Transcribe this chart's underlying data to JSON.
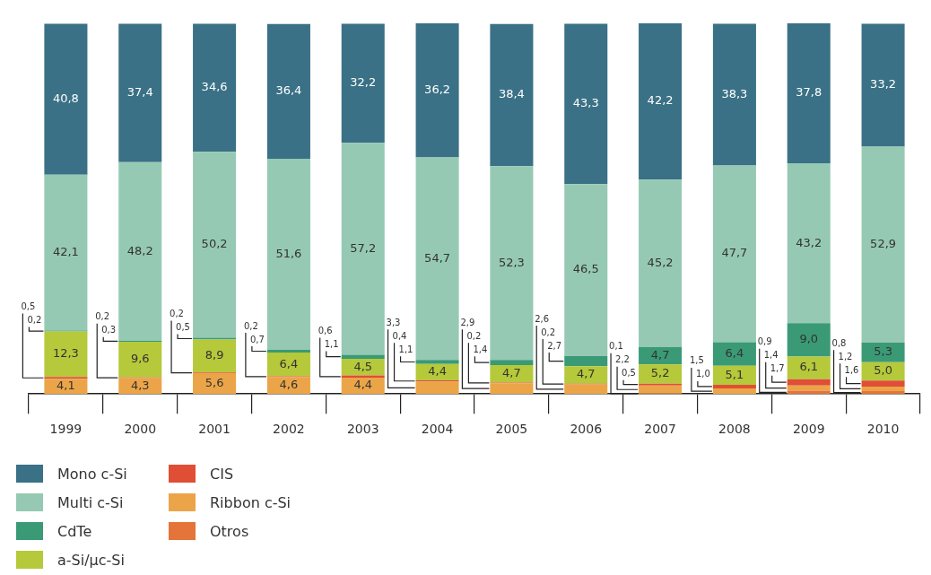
{
  "chart_data": {
    "type": "bar",
    "stacked": true,
    "tick_labels": "x",
    "legend": "bottom",
    "grid": false,
    "categories": [
      "1999",
      "2000",
      "2001",
      "2002",
      "2003",
      "2004",
      "2005",
      "2006",
      "2007",
      "2008",
      "2009",
      "2010"
    ],
    "series": [
      {
        "name": "Otros",
        "color": "#e47439",
        "values": [
          null,
          null,
          null,
          null,
          null,
          null,
          null,
          null,
          0.1,
          null,
          0.9,
          0.8
        ],
        "value_labels": [
          null,
          null,
          null,
          null,
          null,
          null,
          null,
          null,
          "0,1",
          null,
          "0,9",
          "0,8"
        ]
      },
      {
        "name": "Ribbon c-Si",
        "color": "#eba548",
        "values": [
          4.1,
          4.3,
          5.6,
          4.6,
          4.4,
          3.3,
          2.9,
          2.6,
          2.2,
          1.5,
          1.4,
          1.2
        ],
        "value_labels": [
          "4,1",
          "4,3",
          "5,6",
          "4,6",
          "4,4",
          "3,3",
          "2,9",
          "2,6",
          "2,2",
          "1,5",
          "1,4",
          "1,2"
        ]
      },
      {
        "name": "CIS",
        "color": "#e04e35",
        "values": [
          0.5,
          0.2,
          0.2,
          0.2,
          0.6,
          0.4,
          0.2,
          0.2,
          0.5,
          1.0,
          1.7,
          1.6
        ],
        "value_labels": [
          "0,5",
          "0,2",
          "0,2",
          "0,2",
          "0,6",
          "0,4",
          "0,2",
          "0,2",
          "0,5",
          "1,0",
          "1,7",
          "1,6"
        ]
      },
      {
        "name": "a-Si/µc-Si",
        "color": "#b5c93a",
        "values": [
          12.3,
          9.6,
          8.9,
          6.4,
          4.5,
          4.4,
          4.7,
          4.7,
          5.2,
          5.1,
          6.1,
          5.0
        ],
        "value_labels": [
          "12,3",
          "9,6",
          "8,9",
          "6,4",
          "4,5",
          "4,4",
          "4,7",
          "4,7",
          "5,2",
          "5,1",
          "6,1",
          "5,0"
        ]
      },
      {
        "name": "CdTe",
        "color": "#3a9a76",
        "values": [
          0.2,
          0.3,
          0.5,
          0.7,
          1.1,
          1.1,
          1.4,
          2.7,
          4.7,
          6.4,
          9.0,
          5.3
        ],
        "value_labels": [
          "0,2",
          "0,3",
          "0,5",
          "0,7",
          "1,1",
          "1,1",
          "1,4",
          "2,7",
          "4,7",
          "6,4",
          "9,0",
          "5,3"
        ]
      },
      {
        "name": "Multi c-Si",
        "color": "#96c9b3",
        "values": [
          42.1,
          48.2,
          50.2,
          51.6,
          57.2,
          54.7,
          52.3,
          46.5,
          45.2,
          47.7,
          43.2,
          52.9
        ],
        "value_labels": [
          "42,1",
          "48,2",
          "50,2",
          "51,6",
          "57,2",
          "54,7",
          "52,3",
          "46,5",
          "45,2",
          "47,7",
          "43,2",
          "52,9"
        ]
      },
      {
        "name": "Mono c-Si",
        "color": "#3a7186",
        "values": [
          40.8,
          37.4,
          34.6,
          36.4,
          32.2,
          36.2,
          38.4,
          43.3,
          42.2,
          38.3,
          37.8,
          33.2
        ],
        "value_labels": [
          "40,8",
          "37,4",
          "34,6",
          "36,4",
          "32,2",
          "36,2",
          "38,4",
          "43,3",
          "42,2",
          "38,3",
          "37,8",
          "33,2"
        ]
      }
    ]
  }
}
